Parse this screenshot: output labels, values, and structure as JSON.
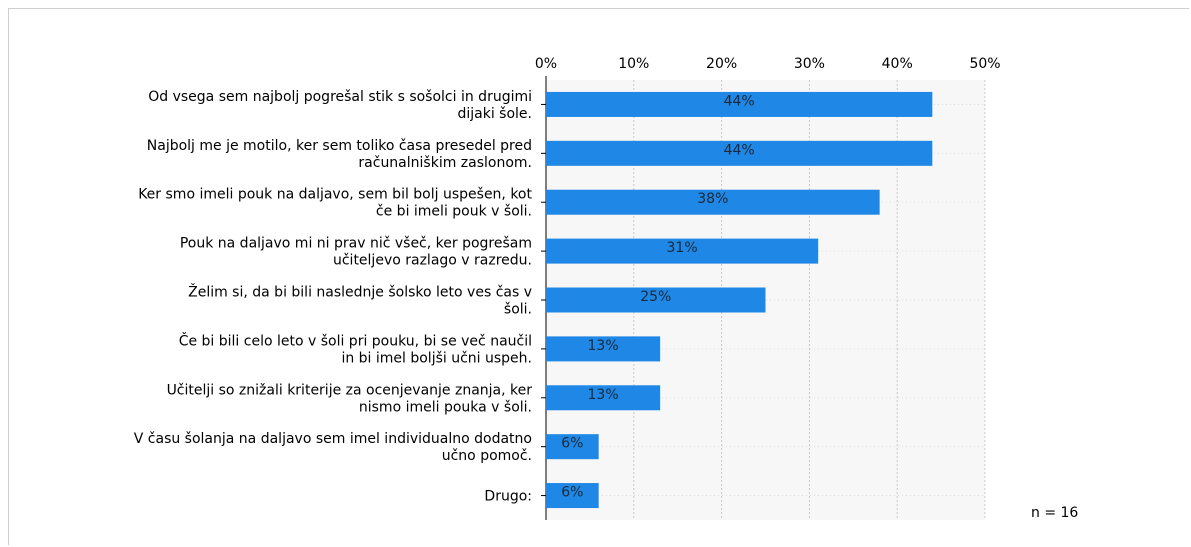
{
  "chart_data": {
    "type": "bar",
    "orientation": "horizontal",
    "categories": [
      [
        "Od vsega sem najbolj pogrešal stik s sošolci in drugimi",
        "dijaki šole."
      ],
      [
        "Najbolj me je motilo, ker sem toliko časa presedel pred",
        "računalniškim zaslonom."
      ],
      [
        "Ker smo imeli pouk na daljavo, sem bil bolj uspešen, kot",
        "če bi imeli pouk v šoli."
      ],
      [
        "Pouk na daljavo mi ni prav nič všeč, ker pogrešam",
        "učiteljevo razlago v razredu."
      ],
      [
        "Želim si, da bi bili naslednje šolsko leto ves čas v",
        "šoli."
      ],
      [
        "Če bi bili celo leto v šoli pri pouku, bi se več naučil",
        "in bi imel boljši učni uspeh."
      ],
      [
        "Učitelji so znižali kriterije za ocenjevanje znanja, ker",
        "nismo imeli pouka v šoli."
      ],
      [
        "V času šolanja na daljavo sem imel individualno dodatno",
        "učno pomoč."
      ],
      [
        "Drugo:"
      ]
    ],
    "values": [
      44,
      44,
      38,
      31,
      25,
      13,
      13,
      6,
      6
    ],
    "value_labels": [
      "44%",
      "44%",
      "38%",
      "31%",
      "25%",
      "13%",
      "13%",
      "6%",
      "6%"
    ],
    "xlim": [
      0,
      50
    ],
    "xticks": [
      "0%",
      "10%",
      "20%",
      "30%",
      "40%",
      "50%"
    ],
    "grid": true,
    "bar_color": "#1f87e5",
    "n_label": "n = 16"
  }
}
